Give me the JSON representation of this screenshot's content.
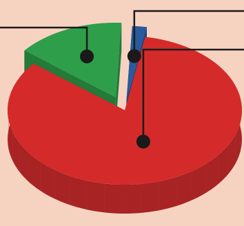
{
  "colors": {
    "background": "#f6d3c1",
    "leader_line": "#1a1a1a"
  },
  "chart_data": {
    "type": "pie",
    "style": "3d-exploded",
    "title": "",
    "legend": "none",
    "labels_visible": false,
    "slices": [
      {
        "value": 83,
        "color": "#d52a2a",
        "side_color": "#a82323",
        "exploded": false,
        "callout": "right"
      },
      {
        "value": 15,
        "color": "#2f9e4a",
        "side_color": "#237a39",
        "exploded": true,
        "callout": "left"
      },
      {
        "value": 2,
        "color": "#2a5a9e",
        "side_color": "#1d4278",
        "exploded": true,
        "callout": "top-right"
      }
    ]
  }
}
